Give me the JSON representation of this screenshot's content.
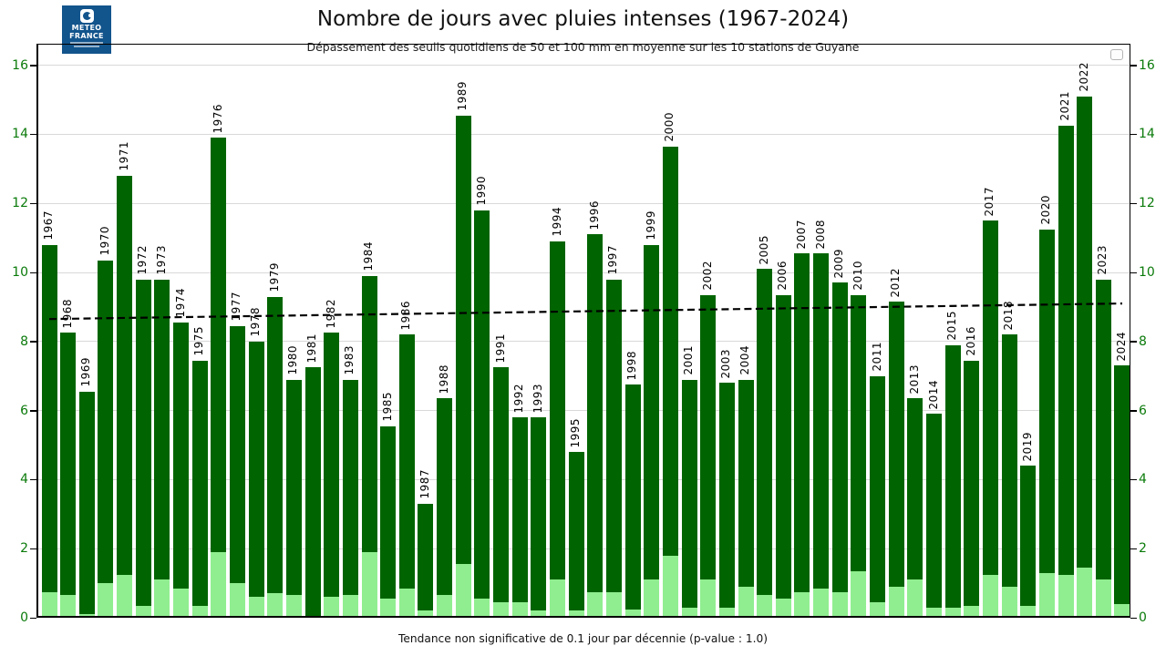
{
  "header": {
    "title": "Nombre de jours avec pluies intenses (1967-2024)",
    "subtitle": "Dépassement des seuils quotidiens de 50 et 100 mm en moyenne sur les 10 stations de Guyane"
  },
  "logo": {
    "line1": "METEO",
    "line2": "FRANCE"
  },
  "footer": {
    "caption": "Tendance non significative de 0.1 jour par décennie (p-value : 1.0)"
  },
  "colors": {
    "bar_dark_green": "#006400",
    "bar_light_green": "#90ee90",
    "axis_tick_labels": "#0a7a0a",
    "gridline": "#d9d9d9",
    "trend_line": "#000000",
    "logo_blue": "#12548c"
  },
  "chart_data": {
    "type": "bar",
    "stacked": true,
    "title": "Nombre de jours avec pluies intenses (1967-2024)",
    "subtitle": "Dépassement des seuils quotidiens de 50 et 100 mm en moyenne sur les 10 stations de Guyane",
    "caption": "Tendance non significative de 0.1 jour par décennie (p-value : 1.0)",
    "categories": [
      "1967",
      "1968",
      "1969",
      "1970",
      "1971",
      "1972",
      "1973",
      "1974",
      "1975",
      "1976",
      "1977",
      "1978",
      "1979",
      "1980",
      "1981",
      "1982",
      "1983",
      "1984",
      "1985",
      "1986",
      "1987",
      "1988",
      "1989",
      "1990",
      "1991",
      "1992",
      "1993",
      "1994",
      "1995",
      "1996",
      "1997",
      "1998",
      "1999",
      "2000",
      "2001",
      "2002",
      "2003",
      "2004",
      "2005",
      "2006",
      "2007",
      "2008",
      "2009",
      "2010",
      "2011",
      "2012",
      "2013",
      "2014",
      "2015",
      "2016",
      "2017",
      "2018",
      "2019",
      "2020",
      "2021",
      "2022",
      "2023",
      "2024"
    ],
    "totals": [
      10.8,
      8.25,
      6.55,
      10.35,
      12.8,
      9.8,
      9.8,
      8.55,
      7.45,
      13.9,
      8.45,
      8.0,
      9.3,
      6.9,
      7.25,
      8.25,
      6.9,
      9.9,
      5.55,
      8.2,
      3.3,
      6.35,
      14.55,
      11.8,
      7.25,
      5.8,
      5.8,
      10.9,
      4.8,
      11.1,
      9.8,
      6.75,
      10.8,
      13.65,
      6.9,
      9.35,
      6.8,
      6.9,
      10.1,
      9.35,
      10.55,
      10.55,
      9.7,
      9.35,
      7.0,
      9.15,
      6.35,
      5.9,
      7.9,
      7.45,
      11.5,
      8.2,
      4.4,
      11.25,
      14.25,
      15.1,
      9.8,
      7.3
    ],
    "series": [
      {
        "name": "light-green-bottom-segment",
        "color": "#90ee90",
        "values": [
          0.75,
          0.65,
          0.1,
          1.0,
          1.25,
          0.35,
          1.1,
          0.85,
          0.35,
          1.9,
          1.0,
          0.6,
          0.7,
          0.65,
          0.0,
          0.6,
          0.65,
          1.9,
          0.55,
          0.85,
          0.2,
          0.65,
          1.55,
          0.55,
          0.45,
          0.45,
          0.2,
          1.1,
          0.2,
          0.75,
          0.75,
          0.25,
          1.1,
          1.8,
          0.3,
          1.1,
          0.3,
          0.9,
          0.65,
          0.55,
          0.75,
          0.85,
          0.75,
          1.35,
          0.45,
          0.9,
          1.1,
          0.3,
          0.3,
          0.35,
          1.25,
          0.9,
          0.35,
          1.3,
          1.25,
          1.45,
          1.1,
          0.4
        ]
      },
      {
        "name": "dark-green-top-segment",
        "color": "#006400",
        "values": [
          10.05,
          7.6,
          6.45,
          9.35,
          11.55,
          9.45,
          8.7,
          7.7,
          7.1,
          12.0,
          7.45,
          7.4,
          8.6,
          6.25,
          7.25,
          7.65,
          6.25,
          8.0,
          5.0,
          7.35,
          3.1,
          5.7,
          13.0,
          11.25,
          6.8,
          5.35,
          5.6,
          9.8,
          4.6,
          10.35,
          9.05,
          6.5,
          9.7,
          11.85,
          6.6,
          8.25,
          6.5,
          6.0,
          9.45,
          8.8,
          9.8,
          9.7,
          8.95,
          8.0,
          6.55,
          8.25,
          5.25,
          5.6,
          7.6,
          7.1,
          10.25,
          7.3,
          4.05,
          9.95,
          13.0,
          13.65,
          8.7,
          6.9
        ]
      }
    ],
    "ylim": [
      0,
      16.6
    ],
    "yticks": [
      0,
      2,
      4,
      6,
      8,
      10,
      12,
      14,
      16
    ],
    "grid": true,
    "legend": "empty box, top-right corner",
    "trend_line": {
      "style": "dashed",
      "from": {
        "x": "1967",
        "y": 8.65
      },
      "to": {
        "x": "2024",
        "y": 9.1
      }
    }
  }
}
